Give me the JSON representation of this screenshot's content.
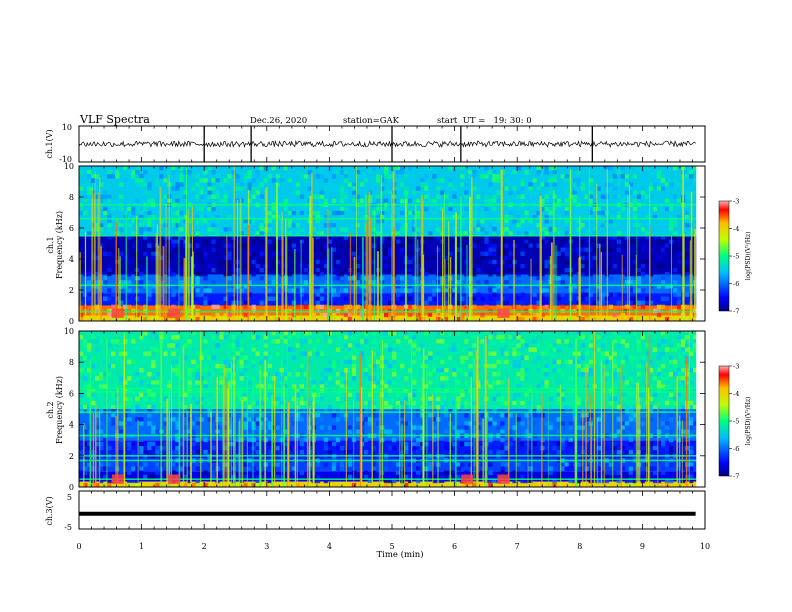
{
  "header": {
    "title": "VLF Spectra",
    "date": "Dec.26, 2020",
    "station": "station=GAK",
    "start": "start  UT =   19: 30: 0"
  },
  "chart_data": [
    {
      "type": "line",
      "panel": "ch1-waveform",
      "ylabel": "ch.1(V)",
      "yticks": [
        "10",
        "-10"
      ],
      "ylim": [
        -10,
        10
      ],
      "xlim": [
        0,
        10
      ],
      "baseline": 0,
      "spikes_min": [
        2.0,
        2.75,
        5.0,
        6.1,
        8.2
      ]
    },
    {
      "type": "heatmap",
      "panel": "ch1-spectrogram",
      "ylabel": "ch.1",
      "ylabel2": "Frequency (kHz)",
      "yticks": [
        "0",
        "2",
        "4",
        "6",
        "8",
        "10"
      ],
      "ylim": [
        0,
        10
      ],
      "xlim": [
        0,
        10
      ],
      "colorbar": {
        "label": "log(PSD)(V²/Hz)",
        "ticks": [
          "-3",
          "-4",
          "-5",
          "-6",
          "-7"
        ],
        "range": [
          -7,
          -3
        ]
      },
      "bands_khz": [
        {
          "f": [
            0.0,
            0.35
          ],
          "level": -4.0
        },
        {
          "f": [
            0.35,
            1.0
          ],
          "level": -3.6
        },
        {
          "f": [
            1.0,
            1.8
          ],
          "level": -6.4
        },
        {
          "f": [
            1.8,
            3.0
          ],
          "level": -6.0
        },
        {
          "f": [
            3.0,
            5.5
          ],
          "level": -6.8
        },
        {
          "f": [
            5.5,
            10.0
          ],
          "level": -5.5
        }
      ],
      "lines_khz": [
        0.6,
        2.3,
        5.5,
        6.6,
        7.5
      ],
      "bursts_min": [
        0.62,
        1.52,
        6.78
      ]
    },
    {
      "type": "heatmap",
      "panel": "ch2-spectrogram",
      "ylabel": "ch.2",
      "ylabel2": "Frequency (kHz)",
      "yticks": [
        "0",
        "2",
        "4",
        "6",
        "8",
        "10"
      ],
      "ylim": [
        0,
        10
      ],
      "xlim": [
        0,
        10
      ],
      "colorbar": {
        "label": "log(PSD)(V²/Hz)",
        "ticks": [
          "-3",
          "-4",
          "-5",
          "-6",
          "-7"
        ],
        "range": [
          -7,
          -3
        ]
      },
      "bands_khz": [
        {
          "f": [
            0.0,
            0.35
          ],
          "level": -4.0
        },
        {
          "f": [
            0.35,
            1.0
          ],
          "level": -6.6
        },
        {
          "f": [
            1.0,
            1.8
          ],
          "level": -6.2
        },
        {
          "f": [
            1.8,
            3.0
          ],
          "level": -6.4
        },
        {
          "f": [
            3.0,
            5.0
          ],
          "level": -6.0
        },
        {
          "f": [
            5.0,
            10.0
          ],
          "level": -5.2
        }
      ],
      "lines_khz": [
        0.5,
        1.7,
        2.0,
        3.3,
        4.8,
        6.1,
        6.3
      ],
      "bursts_min": [
        0.62,
        1.52,
        6.2,
        6.78
      ]
    },
    {
      "type": "line",
      "panel": "ch3-waveform",
      "ylabel": "ch.3(V)",
      "yticks": [
        "5",
        "-5"
      ],
      "ylim": [
        -5,
        5
      ],
      "xlim": [
        0,
        10
      ],
      "baseline": -1.0
    }
  ],
  "xaxis": {
    "label": "Time (min)",
    "ticks": [
      "0",
      "1",
      "2",
      "3",
      "4",
      "5",
      "6",
      "7",
      "8",
      "9",
      "10"
    ]
  }
}
